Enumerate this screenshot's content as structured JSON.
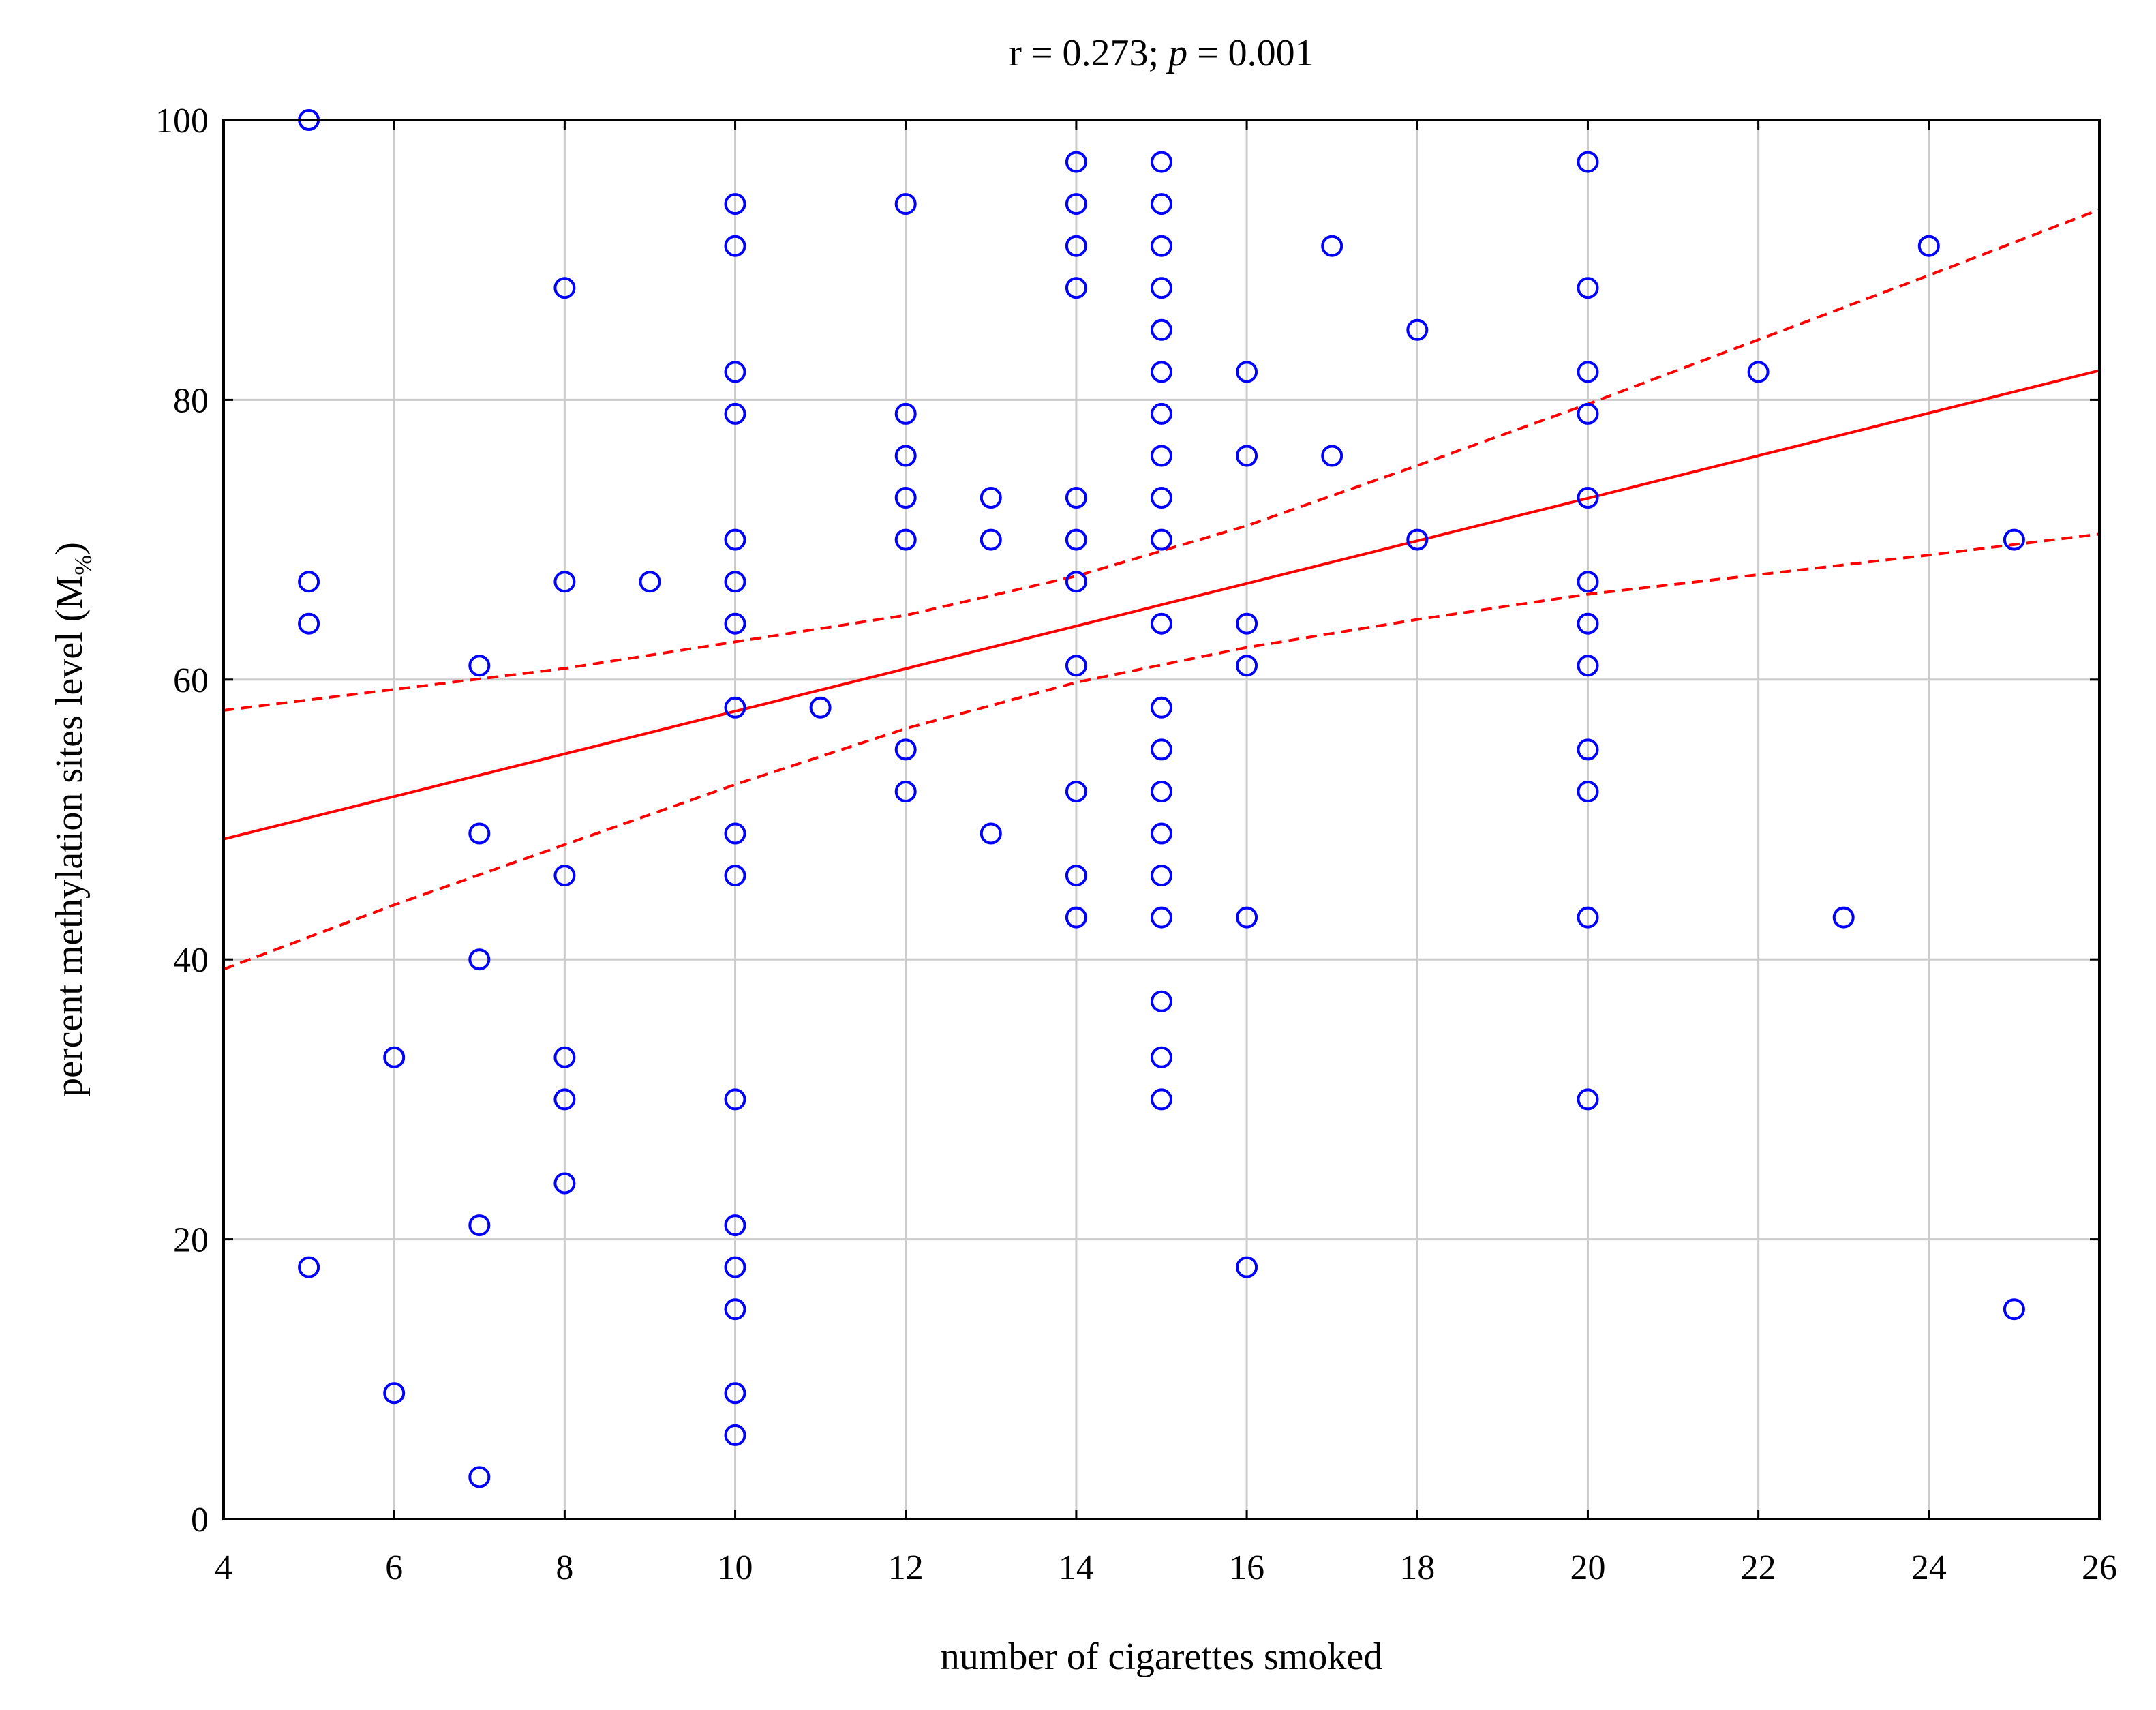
{
  "chart_data": {
    "type": "scatter",
    "title": {
      "prefix": "r = 0.273; ",
      "p_symbol": "p",
      "suffix": " = 0.001"
    },
    "xlabel": "number of cigarettes smoked",
    "ylabel": {
      "main": "percent methylation sites  level (M",
      "sub": "%",
      "close": ")"
    },
    "xlim": [
      4,
      26
    ],
    "ylim": [
      0,
      100
    ],
    "x_ticks": [
      "4",
      "6",
      "8",
      "10",
      "12",
      "14",
      "16",
      "18",
      "20",
      "22",
      "24",
      "26"
    ],
    "y_ticks": [
      "0",
      "20",
      "40",
      "60",
      "80",
      "100"
    ],
    "grid": true,
    "colors": {
      "points": "#0000ff",
      "fit": "#ff0000",
      "grid": "#cccccc"
    },
    "points": [
      [
        5,
        100
      ],
      [
        5,
        67
      ],
      [
        5,
        64
      ],
      [
        5,
        18
      ],
      [
        6,
        33
      ],
      [
        6,
        9
      ],
      [
        7,
        61
      ],
      [
        7,
        49
      ],
      [
        7,
        40
      ],
      [
        7,
        21
      ],
      [
        7,
        3
      ],
      [
        8,
        88
      ],
      [
        8,
        67
      ],
      [
        8,
        46
      ],
      [
        8,
        33
      ],
      [
        8,
        30
      ],
      [
        8,
        24
      ],
      [
        9,
        67
      ],
      [
        10,
        94
      ],
      [
        10,
        91
      ],
      [
        10,
        82
      ],
      [
        10,
        79
      ],
      [
        10,
        70
      ],
      [
        10,
        67
      ],
      [
        10,
        64
      ],
      [
        10,
        58
      ],
      [
        10,
        49
      ],
      [
        10,
        46
      ],
      [
        10,
        30
      ],
      [
        10,
        21
      ],
      [
        10,
        18
      ],
      [
        10,
        15
      ],
      [
        10,
        9
      ],
      [
        10,
        6
      ],
      [
        11,
        58
      ],
      [
        12,
        94
      ],
      [
        12,
        79
      ],
      [
        12,
        76
      ],
      [
        12,
        73
      ],
      [
        12,
        70
      ],
      [
        12,
        55
      ],
      [
        12,
        52
      ],
      [
        13,
        73
      ],
      [
        13,
        70
      ],
      [
        13,
        49
      ],
      [
        14,
        97
      ],
      [
        14,
        94
      ],
      [
        14,
        91
      ],
      [
        14,
        88
      ],
      [
        14,
        73
      ],
      [
        14,
        70
      ],
      [
        14,
        67
      ],
      [
        14,
        61
      ],
      [
        14,
        52
      ],
      [
        14,
        46
      ],
      [
        14,
        43
      ],
      [
        15,
        97
      ],
      [
        15,
        94
      ],
      [
        15,
        91
      ],
      [
        15,
        88
      ],
      [
        15,
        85
      ],
      [
        15,
        82
      ],
      [
        15,
        79
      ],
      [
        15,
        76
      ],
      [
        15,
        73
      ],
      [
        15,
        70
      ],
      [
        15,
        64
      ],
      [
        15,
        58
      ],
      [
        15,
        55
      ],
      [
        15,
        52
      ],
      [
        15,
        49
      ],
      [
        15,
        46
      ],
      [
        15,
        43
      ],
      [
        15,
        37
      ],
      [
        15,
        33
      ],
      [
        15,
        30
      ],
      [
        16,
        82
      ],
      [
        16,
        76
      ],
      [
        16,
        64
      ],
      [
        16,
        61
      ],
      [
        16,
        43
      ],
      [
        16,
        18
      ],
      [
        17,
        91
      ],
      [
        17,
        76
      ],
      [
        18,
        85
      ],
      [
        18,
        70
      ],
      [
        20,
        97
      ],
      [
        20,
        88
      ],
      [
        20,
        82
      ],
      [
        20,
        79
      ],
      [
        20,
        73
      ],
      [
        20,
        67
      ],
      [
        20,
        64
      ],
      [
        20,
        61
      ],
      [
        20,
        55
      ],
      [
        20,
        52
      ],
      [
        20,
        43
      ],
      [
        20,
        30
      ],
      [
        22,
        82
      ],
      [
        23,
        43
      ],
      [
        24,
        91
      ],
      [
        25,
        70
      ],
      [
        25,
        15
      ]
    ],
    "fit_line": [
      [
        4,
        48.6
      ],
      [
        26,
        82.1
      ]
    ],
    "ci_upper": [
      [
        4,
        57.8
      ],
      [
        6,
        59.3
      ],
      [
        8,
        60.8
      ],
      [
        10,
        62.7
      ],
      [
        12,
        64.6
      ],
      [
        14,
        67.4
      ],
      [
        16,
        71.0
      ],
      [
        18,
        75.3
      ],
      [
        20,
        79.7
      ],
      [
        22,
        84.3
      ],
      [
        24,
        88.9
      ],
      [
        26,
        93.6
      ]
    ],
    "ci_lower": [
      [
        4,
        39.3
      ],
      [
        6,
        43.9
      ],
      [
        8,
        48.2
      ],
      [
        10,
        52.5
      ],
      [
        12,
        56.5
      ],
      [
        14,
        59.8
      ],
      [
        16,
        62.3
      ],
      [
        18,
        64.3
      ],
      [
        20,
        66.1
      ],
      [
        22,
        67.5
      ],
      [
        24,
        68.9
      ],
      [
        26,
        70.4
      ]
    ]
  }
}
